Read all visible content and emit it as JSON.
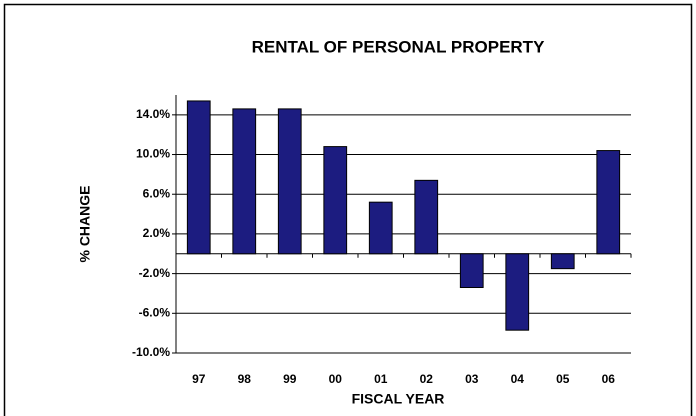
{
  "chart_data": {
    "type": "bar",
    "title": "RENTAL OF PERSONAL PROPERTY",
    "x_label": "FISCAL YEAR",
    "y_label": "% CHANGE",
    "categories": [
      "97",
      "98",
      "99",
      "00",
      "01",
      "02",
      "03",
      "04",
      "05",
      "06"
    ],
    "values": [
      15.4,
      14.6,
      14.6,
      10.8,
      5.2,
      7.4,
      -3.4,
      -7.7,
      -1.5,
      10.4
    ],
    "color": "#1c1c80",
    "ylim": [
      -10,
      16
    ],
    "yticks": [
      {
        "value": -10,
        "label": "-10.0%"
      },
      {
        "value": -6,
        "label": "-6.0%"
      },
      {
        "value": -2,
        "label": "-2.0%"
      },
      {
        "value": 2,
        "label": "2.0%"
      },
      {
        "value": 6,
        "label": "6.0%"
      },
      {
        "value": 10,
        "label": "10.0%"
      },
      {
        "value": 14,
        "label": "14.0%"
      }
    ],
    "grid": true
  }
}
